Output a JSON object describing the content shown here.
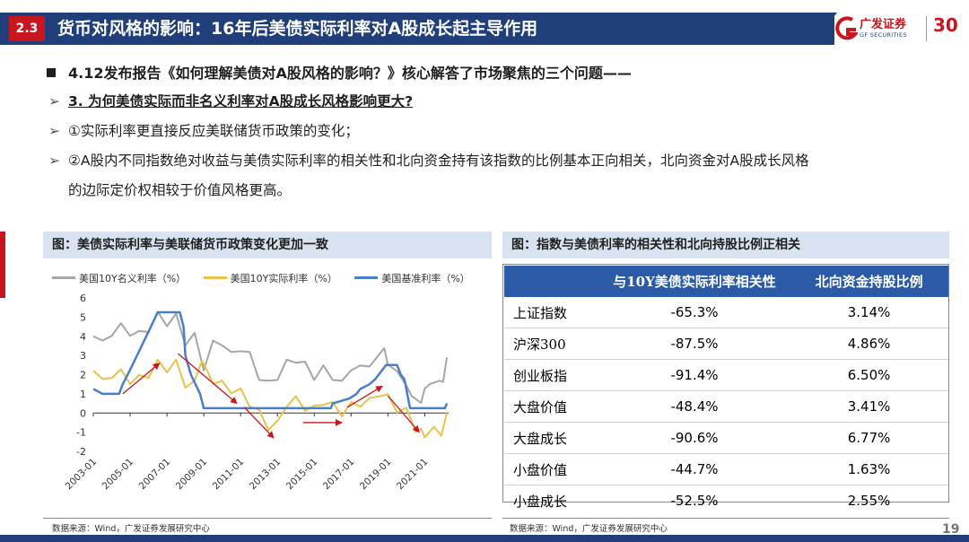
{
  "header": {
    "section": "2.3",
    "title": "货币对风格的影响：16年后美债实际利率对A股成长起主导作用",
    "logo_cn": "广发证券",
    "logo_en": "GF SECURITIES",
    "logo_num": "30"
  },
  "bullets": {
    "main": "4.12发布报告《如何理解美债对A股风格的影响？》核心解答了市场聚焦的三个问题——",
    "q3": "3. 为何美债实际而非名义利率对A股成长风格影响更大?",
    "p1": "①实际利率更直接反应美联储货币政策的变化；",
    "p2a": "②A股内不同指数绝对收益与美债实际利率的相关性和北向资金持有该指数的比例基本正向相关，北向资金对A股成长风格",
    "p2b": "的边际定价权相较于价值风格更高。"
  },
  "left_panel": {
    "title": "图：美债实际利率与美联储货币政策变化更加一致",
    "source": "数据来源：Wind，广发证券发展研究中心"
  },
  "right_panel": {
    "title": "图：指数与美债利率的相关性和北向持股比例正相关",
    "source": "数据来源：Wind，广发证券发展研究中心"
  },
  "page_number": "19",
  "colors": {
    "nominal": "#a6a6a6",
    "real": "#e8c24a",
    "fed": "#4a7fc8",
    "arrow": "#c8161e"
  },
  "chart_data": {
    "type": "line",
    "ylim": [
      -2,
      6
    ],
    "yticks": [
      "6",
      "5",
      "4",
      "3",
      "2",
      "1",
      "0",
      "-1",
      "-2"
    ],
    "xticks": [
      "2003-01",
      "2005-01",
      "2007-01",
      "2009-01",
      "2011-01",
      "2013-01",
      "2015-01",
      "2017-01",
      "2019-01",
      "2021-01"
    ],
    "xrange": [
      2003.0,
      2022.2
    ],
    "series": [
      {
        "name": "美国10Y名义利率（%）",
        "color": "#a6a6a6",
        "points": [
          [
            2003.0,
            4.0
          ],
          [
            2003.5,
            3.6
          ],
          [
            2004.0,
            4.2
          ],
          [
            2004.5,
            4.5
          ],
          [
            2005.0,
            4.2
          ],
          [
            2005.5,
            4.1
          ],
          [
            2006.0,
            4.4
          ],
          [
            2006.5,
            5.1
          ],
          [
            2007.0,
            4.7
          ],
          [
            2007.5,
            5.0
          ],
          [
            2008.0,
            3.7
          ],
          [
            2008.5,
            4.0
          ],
          [
            2009.0,
            2.4
          ],
          [
            2009.5,
            3.6
          ],
          [
            2010.0,
            3.7
          ],
          [
            2010.5,
            3.0
          ],
          [
            2011.0,
            3.4
          ],
          [
            2011.5,
            3.0
          ],
          [
            2012.0,
            1.9
          ],
          [
            2012.5,
            1.5
          ],
          [
            2013.0,
            1.9
          ],
          [
            2013.5,
            2.6
          ],
          [
            2014.0,
            2.8
          ],
          [
            2014.5,
            2.5
          ],
          [
            2015.0,
            1.9
          ],
          [
            2015.5,
            2.3
          ],
          [
            2016.0,
            1.9
          ],
          [
            2016.5,
            1.5
          ],
          [
            2017.0,
            2.4
          ],
          [
            2017.5,
            2.3
          ],
          [
            2018.0,
            2.6
          ],
          [
            2018.8,
            3.2
          ],
          [
            2019.0,
            2.7
          ],
          [
            2019.5,
            2.0
          ],
          [
            2020.0,
            1.6
          ],
          [
            2020.3,
            0.7
          ],
          [
            2020.8,
            0.7
          ],
          [
            2021.0,
            1.1
          ],
          [
            2021.3,
            1.7
          ],
          [
            2021.8,
            1.5
          ],
          [
            2022.0,
            1.8
          ],
          [
            2022.2,
            2.9
          ]
        ]
      },
      {
        "name": "美国10Y实际利率（%）",
        "color": "#e8c24a",
        "points": [
          [
            2003.0,
            2.2
          ],
          [
            2003.5,
            1.6
          ],
          [
            2004.0,
            2.0
          ],
          [
            2004.5,
            2.1
          ],
          [
            2005.0,
            1.7
          ],
          [
            2005.5,
            1.8
          ],
          [
            2006.0,
            2.0
          ],
          [
            2006.5,
            2.6
          ],
          [
            2007.0,
            2.3
          ],
          [
            2007.5,
            2.6
          ],
          [
            2008.0,
            1.5
          ],
          [
            2008.5,
            1.5
          ],
          [
            2008.9,
            2.9
          ],
          [
            2009.2,
            2.0
          ],
          [
            2009.5,
            1.7
          ],
          [
            2010.0,
            1.5
          ],
          [
            2010.5,
            1.2
          ],
          [
            2011.0,
            1.1
          ],
          [
            2011.5,
            0.5
          ],
          [
            2012.0,
            0.0
          ],
          [
            2012.5,
            -0.7
          ],
          [
            2013.0,
            -0.6
          ],
          [
            2013.5,
            0.5
          ],
          [
            2014.0,
            0.7
          ],
          [
            2014.5,
            0.3
          ],
          [
            2015.0,
            0.2
          ],
          [
            2015.5,
            0.6
          ],
          [
            2016.0,
            0.4
          ],
          [
            2016.5,
            0.0
          ],
          [
            2017.0,
            0.4
          ],
          [
            2017.5,
            0.5
          ],
          [
            2018.0,
            0.6
          ],
          [
            2018.8,
            1.1
          ],
          [
            2019.0,
            0.8
          ],
          [
            2019.5,
            0.2
          ],
          [
            2020.0,
            0.1
          ],
          [
            2020.5,
            -0.8
          ],
          [
            2020.8,
            -1.0
          ],
          [
            2021.0,
            -1.1
          ],
          [
            2021.5,
            -0.9
          ],
          [
            2021.9,
            -1.0
          ],
          [
            2022.2,
            0.0
          ]
        ]
      },
      {
        "name": "美国基准利率（%）",
        "color": "#4a7fc8",
        "points": [
          [
            2003.0,
            1.25
          ],
          [
            2003.5,
            1.0
          ],
          [
            2004.4,
            1.0
          ],
          [
            2004.6,
            1.5
          ],
          [
            2005.0,
            2.25
          ],
          [
            2005.5,
            3.25
          ],
          [
            2006.0,
            4.25
          ],
          [
            2006.5,
            5.25
          ],
          [
            2007.7,
            5.25
          ],
          [
            2007.9,
            4.5
          ],
          [
            2008.0,
            3.0
          ],
          [
            2008.3,
            2.0
          ],
          [
            2008.8,
            1.0
          ],
          [
            2009.0,
            0.25
          ],
          [
            2015.9,
            0.25
          ],
          [
            2016.0,
            0.5
          ],
          [
            2016.9,
            0.75
          ],
          [
            2017.3,
            1.0
          ],
          [
            2017.5,
            1.25
          ],
          [
            2018.0,
            1.5
          ],
          [
            2018.3,
            1.75
          ],
          [
            2018.5,
            2.0
          ],
          [
            2018.9,
            2.5
          ],
          [
            2019.5,
            2.5
          ],
          [
            2019.7,
            2.0
          ],
          [
            2019.9,
            1.75
          ],
          [
            2020.2,
            0.25
          ],
          [
            2022.1,
            0.25
          ],
          [
            2022.2,
            0.5
          ]
        ]
      }
    ],
    "trend_arrows": [
      [
        [
          2004.6,
          1.0
        ],
        [
          2006.6,
          2.6
        ]
      ],
      [
        [
          2007.6,
          3.1
        ],
        [
          2010.8,
          0.5
        ]
      ],
      [
        [
          2011.2,
          0.3
        ],
        [
          2012.8,
          -1.3
        ]
      ],
      [
        [
          2014.4,
          -0.5
        ],
        [
          2016.5,
          -0.5
        ]
      ],
      [
        [
          2016.8,
          0.3
        ],
        [
          2018.7,
          1.4
        ]
      ],
      [
        [
          2019.0,
          0.9
        ],
        [
          2020.7,
          -1.0
        ]
      ]
    ]
  },
  "table": {
    "headers": [
      "",
      "与10Y美债实际利率相关性",
      "北向资金持股比例"
    ],
    "rows": [
      [
        "上证指数",
        "-65.3%",
        "3.14%"
      ],
      [
        "沪深300",
        "-87.5%",
        "4.86%"
      ],
      [
        "创业板指",
        "-91.4%",
        "6.50%"
      ],
      [
        "大盘价值",
        "-48.4%",
        "3.41%"
      ],
      [
        "大盘成长",
        "-90.6%",
        "6.77%"
      ],
      [
        "小盘价值",
        "-44.7%",
        "1.63%"
      ],
      [
        "小盘成长",
        "-52.5%",
        "2.55%"
      ]
    ]
  }
}
